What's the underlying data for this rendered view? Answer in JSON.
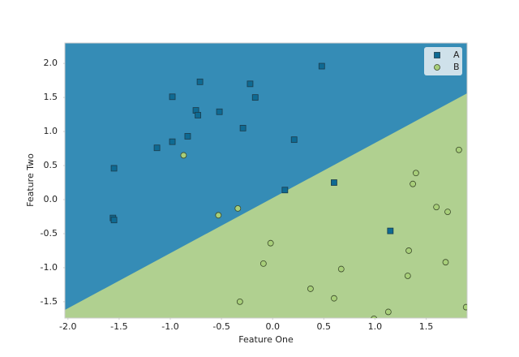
{
  "chart_data": {
    "type": "scatter",
    "xlabel": "Feature One",
    "ylabel": "Feature Two",
    "xlim": [
      -2.03,
      1.9
    ],
    "ylim": [
      -1.74,
      2.3
    ],
    "xticks": [
      {
        "value": -2,
        "label": "-2.0"
      },
      -1.5,
      {
        "value": -1,
        "label": "-1.0"
      },
      -0.5,
      {
        "value": 0,
        "label": "0.0"
      },
      0.5,
      {
        "value": 1,
        "label": "1.0"
      },
      1.5
    ],
    "yticks": [
      -1.5,
      {
        "value": -1,
        "label": "-1.0"
      },
      -0.5,
      {
        "value": 0,
        "label": "0.0"
      },
      0.5,
      {
        "value": 1,
        "label": "1.0"
      },
      1.5,
      {
        "value": 2,
        "label": "2.0"
      }
    ],
    "legend": "upper right",
    "series": [
      {
        "name": "A",
        "color": "#0e6a93",
        "marker": "square",
        "x": [
          0.48,
          -0.71,
          -0.98,
          -0.22,
          -0.17,
          -0.75,
          -0.73,
          -0.52,
          -0.29,
          -0.83,
          -0.98,
          -1.13,
          0.21,
          -1.55,
          0.12,
          0.6,
          -1.56,
          -1.55,
          1.15
        ],
        "values": [
          1.96,
          1.73,
          1.51,
          1.7,
          1.5,
          1.31,
          1.24,
          1.29,
          1.05,
          0.93,
          0.85,
          0.76,
          0.88,
          0.46,
          0.14,
          0.25,
          -0.27,
          -0.3,
          -0.46
        ]
      },
      {
        "name": "B",
        "color": "#a8cf7a",
        "marker": "circle",
        "x": [
          -0.87,
          -0.34,
          -0.53,
          -0.02,
          -0.09,
          0.67,
          0.37,
          -0.32,
          0.6,
          1.13,
          0.99,
          1.82,
          1.4,
          1.37,
          1.6,
          1.71,
          1.33,
          1.69,
          1.32,
          1.89
        ],
        "values": [
          0.65,
          -0.13,
          -0.23,
          -0.64,
          -0.94,
          -1.02,
          -1.31,
          -1.5,
          -1.45,
          -1.65,
          -1.75,
          0.73,
          0.39,
          0.23,
          -0.11,
          -0.18,
          -0.75,
          -0.92,
          -1.12,
          -1.58
        ]
      }
    ]
  }
}
